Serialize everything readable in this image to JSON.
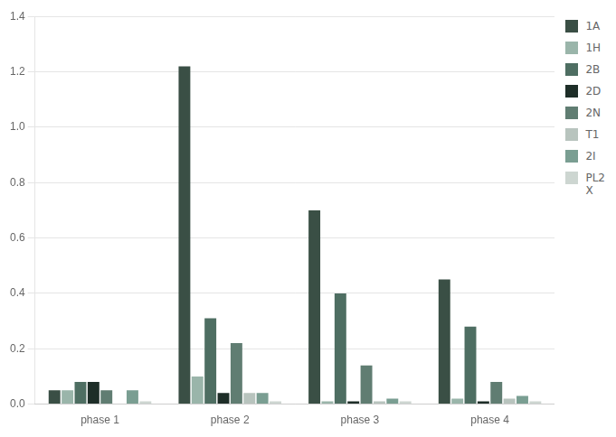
{
  "chart_data": {
    "type": "bar",
    "categories": [
      "phase 1",
      "phase 2",
      "phase 3",
      "phase 4"
    ],
    "series": [
      {
        "name": "1A",
        "color": "#3a4f45",
        "values": [
          0.05,
          1.22,
          0.7,
          0.45
        ]
      },
      {
        "name": "1H",
        "color": "#9ab5aa",
        "values": [
          0.05,
          0.1,
          0.01,
          0.02
        ]
      },
      {
        "name": "2B",
        "color": "#4e6e62",
        "values": [
          0.08,
          0.31,
          0.4,
          0.28
        ]
      },
      {
        "name": "2D",
        "color": "#1e2e28",
        "values": [
          0.08,
          0.04,
          0.01,
          0.01
        ]
      },
      {
        "name": "2N",
        "color": "#607d72",
        "values": [
          0.05,
          0.22,
          0.14,
          0.08
        ]
      },
      {
        "name": "T1",
        "color": "#b8c4be",
        "values": [
          0.0,
          0.04,
          0.01,
          0.02
        ]
      },
      {
        "name": "2I",
        "color": "#7a9e92",
        "values": [
          0.05,
          0.04,
          0.02,
          0.03
        ]
      },
      {
        "name": "PL2\nX",
        "color": "#cdd6d1",
        "values": [
          0.01,
          0.01,
          0.01,
          0.01
        ]
      }
    ],
    "ylim": [
      0,
      1.4
    ],
    "yticks": [
      {
        "value": 0,
        "label": "0.0"
      },
      0.2,
      0.4,
      0.6,
      0.8,
      {
        "value": 1,
        "label": "1.0"
      },
      1.2,
      1.4
    ],
    "grid": true,
    "legend": "right"
  }
}
